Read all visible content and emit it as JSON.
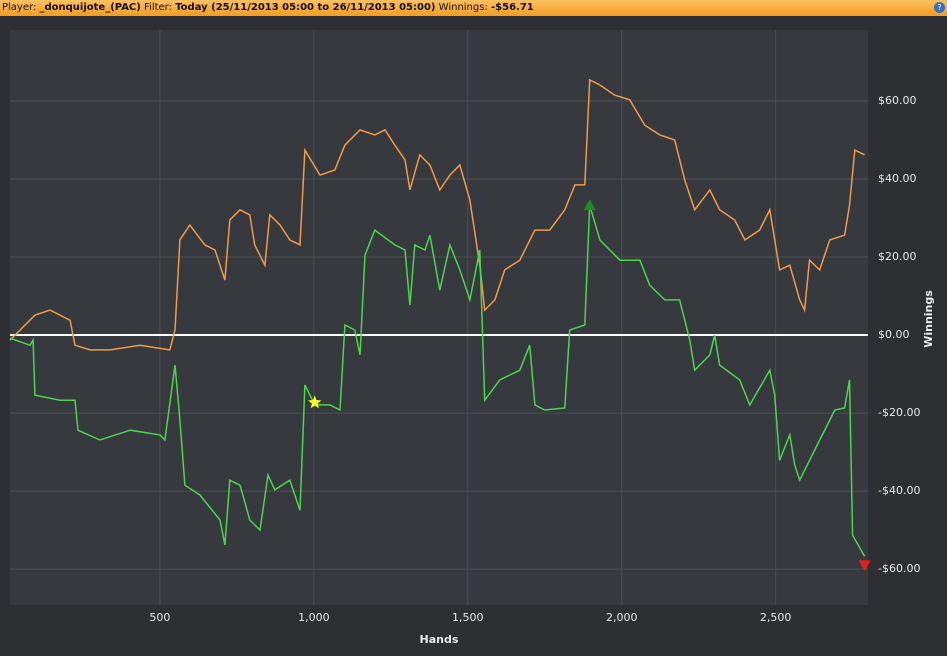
{
  "header": {
    "player_label": "Player:",
    "player": "_donquijote_(PAC)",
    "filter_label": "Filter:",
    "filter": "Today (25/11/2013 05:00 to 26/11/2013 05:00)",
    "winnings_label": "Winnings:",
    "winnings": "-$56.71"
  },
  "chart_data": {
    "type": "line",
    "x_label": "Hands",
    "y_label": "Winnings",
    "xlim": [
      13,
      2800
    ],
    "ylim": [
      -69.2,
      78.2
    ],
    "xticks": [
      500,
      {
        "value": 1000,
        "label": "1,000"
      },
      {
        "value": 1500,
        "label": "1,500"
      },
      {
        "value": 2000,
        "label": "2,000"
      },
      {
        "value": 2500,
        "label": "2,500"
      }
    ],
    "yticks": [
      {
        "value": -60,
        "label": "-$60.00"
      },
      {
        "value": -40,
        "label": "-$40.00"
      },
      {
        "value": -20,
        "label": "-$20.00"
      },
      {
        "value": 0,
        "label": "$0.00"
      },
      {
        "value": 20,
        "label": "$20.00"
      },
      {
        "value": 40,
        "label": "$40.00"
      },
      {
        "value": 60,
        "label": "$60.00"
      }
    ],
    "grid": true,
    "zero_line": true,
    "series": [
      {
        "color": "#f39a4a",
        "x": [
          13,
          94,
          143,
          208,
          224,
          273,
          338,
          435,
          532,
          549,
          565,
          597,
          646,
          679,
          711,
          727,
          760,
          792,
          808,
          841,
          857,
          890,
          922,
          955,
          971,
          1020,
          1068,
          1101,
          1150,
          1198,
          1231,
          1263,
          1296,
          1312,
          1344,
          1377,
          1409,
          1442,
          1474,
          1507,
          1539,
          1555,
          1588,
          1620,
          1669,
          1718,
          1766,
          1815,
          1848,
          1880,
          1896,
          1929,
          1977,
          2026,
          2075,
          2124,
          2172,
          2205,
          2237,
          2286,
          2318,
          2367,
          2400,
          2448,
          2481,
          2513,
          2546,
          2578,
          2594,
          2610,
          2643,
          2676,
          2724,
          2740,
          2757,
          2789
        ],
        "values": [
          -1.3,
          5.1,
          6.4,
          3.8,
          -2.6,
          -3.8,
          -3.8,
          -2.6,
          -3.8,
          1.3,
          24.4,
          28.2,
          23.1,
          21.8,
          14.1,
          29.5,
          32.1,
          30.8,
          23.1,
          17.9,
          30.8,
          28.2,
          24.4,
          23.1,
          47.4,
          41,
          42.3,
          48.7,
          52.6,
          51.3,
          52.6,
          48.7,
          44.9,
          37.2,
          46.2,
          43.6,
          37.2,
          41,
          43.6,
          34.6,
          17.9,
          6.4,
          9,
          16.7,
          19.2,
          26.9,
          26.9,
          32.1,
          38.5,
          38.5,
          65.4,
          64.1,
          61.5,
          60.3,
          53.8,
          51.3,
          50,
          39.7,
          32.1,
          37.2,
          32.1,
          29.5,
          24.4,
          26.9,
          32.1,
          16.7,
          17.9,
          9,
          6.4,
          19.2,
          16.7,
          24.4,
          25.6,
          33.3,
          47.4,
          46.2
        ]
      },
      {
        "color": "#4ed44e",
        "x": [
          13,
          78,
          88,
          94,
          175,
          224,
          234,
          305,
          403,
          500,
          516,
          549,
          565,
          581,
          630,
          695,
          711,
          727,
          760,
          792,
          825,
          851,
          873,
          922,
          955,
          971,
          1003,
          1052,
          1085,
          1101,
          1133,
          1150,
          1166,
          1198,
          1263,
          1296,
          1312,
          1328,
          1361,
          1377,
          1409,
          1442,
          1474,
          1507,
          1539,
          1555,
          1604,
          1669,
          1701,
          1718,
          1750,
          1815,
          1831,
          1880,
          1896,
          1929,
          1994,
          2059,
          2091,
          2140,
          2188,
          2221,
          2237,
          2286,
          2302,
          2318,
          2383,
          2416,
          2481,
          2497,
          2513,
          2546,
          2562,
          2578,
          2643,
          2676,
          2692,
          2724,
          2740,
          2750,
          2789
        ],
        "values": [
          -0.8,
          -2.6,
          -1.3,
          -15.4,
          -16.7,
          -16.7,
          -24.4,
          -26.9,
          -24.4,
          -25.6,
          -26.9,
          -7.7,
          -21.8,
          -38.5,
          -41,
          -47.4,
          -53.8,
          -37.2,
          -38.5,
          -47.4,
          -50,
          -35.9,
          -39.7,
          -37.2,
          -44.9,
          -12.8,
          -17.9,
          -17.9,
          -19.2,
          2.6,
          1.3,
          -5.1,
          20.5,
          26.9,
          23.1,
          21.8,
          7.7,
          23.1,
          21.8,
          25.6,
          11.5,
          23.1,
          16.7,
          9,
          21.8,
          -16.7,
          -11.5,
          -9,
          -2.6,
          -17.9,
          -19.2,
          -18.7,
          1.3,
          2.6,
          33.3,
          24.4,
          19.2,
          19.2,
          12.8,
          9,
          9,
          -1.3,
          -9,
          -5.1,
          0,
          -7.7,
          -11.5,
          -17.9,
          -9,
          -15.4,
          -32.1,
          -25.6,
          -33.3,
          -37.2,
          -26.9,
          -21.8,
          -19.2,
          -18.7,
          -11.5,
          -51.3,
          -56.7
        ]
      }
    ],
    "markers": [
      {
        "shape": "star",
        "x": 1003,
        "y": -17.3,
        "color": "#ffff2a"
      },
      {
        "shape": "up",
        "x": 1896,
        "y": 33.3,
        "color": "#1e8c1e"
      },
      {
        "shape": "down",
        "x": 2789,
        "y": -59,
        "color": "#e02020"
      }
    ]
  }
}
